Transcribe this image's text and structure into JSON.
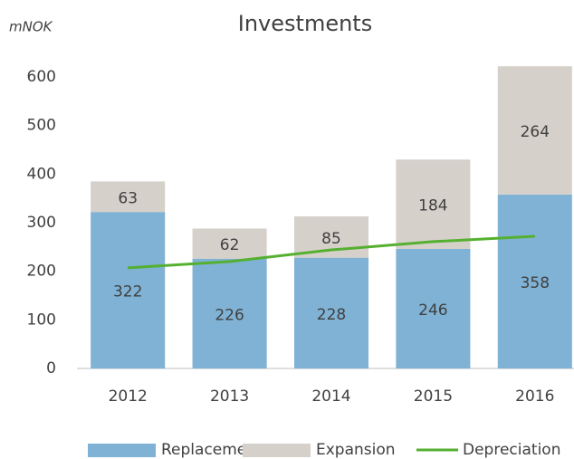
{
  "chart_data": {
    "type": "bar",
    "stacked": true,
    "title": "Investments",
    "unit_label": "mNOK",
    "categories": [
      "2012",
      "2013",
      "2014",
      "2015",
      "2016"
    ],
    "series": [
      {
        "name": "Replacement",
        "color": "#7fb2d4",
        "values": [
          322,
          226,
          228,
          246,
          358
        ]
      },
      {
        "name": "Expansion",
        "color": "#d6d0cb",
        "values": [
          63,
          62,
          85,
          184,
          264
        ]
      },
      {
        "name": "Depreciation",
        "type": "line",
        "color": "#55b030",
        "values": [
          207,
          220,
          244,
          261,
          272
        ]
      }
    ],
    "ylim": [
      0,
      600
    ],
    "yticks": [
      0,
      100,
      200,
      300,
      400,
      500,
      600
    ],
    "grid": false
  }
}
